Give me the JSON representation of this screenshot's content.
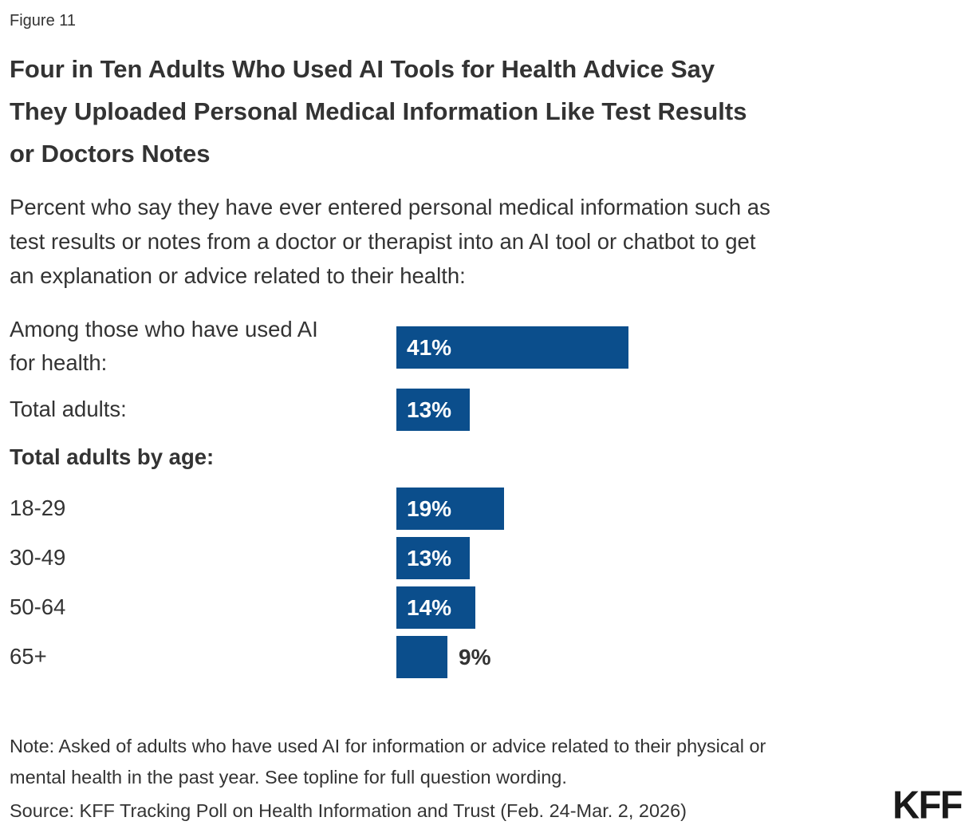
{
  "figure_label": "Figure 11",
  "title_lines": [
    "Four in Ten Adults Who Used AI Tools for Health Advice Say",
    "They Uploaded Personal Medical Information Like Test Results",
    "or Doctors Notes"
  ],
  "subtitle_lines": [
    "Percent who say they have ever entered personal medical information such as",
    "test results or notes from a doctor or therapist into an AI tool or chatbot to get",
    "an explanation or advice related to their health:"
  ],
  "chart_data": {
    "type": "bar",
    "orientation": "horizontal",
    "title": "Four in Ten Adults Who Used AI Tools for Health Advice Say They Uploaded Personal Medical Information Like Test Results or Doctors Notes",
    "subtitle": "Percent who say they have ever entered personal medical information such as test results or notes from a doctor or therapist into an AI tool or chatbot to get an explanation or advice related to their health:",
    "group_header": "Total adults by age:",
    "categories": [
      "Among those who have used AI for health:",
      "Total adults:",
      "18-29",
      "30-49",
      "50-64",
      "65+"
    ],
    "values": [
      41,
      13,
      19,
      13,
      14,
      9
    ],
    "value_labels": [
      "41%",
      "13%",
      "19%",
      "13%",
      "14%",
      "9%"
    ],
    "xlim": [
      0,
      100
    ],
    "grid": false,
    "legend": false,
    "bar_color": "#0b4e8c",
    "value_label_inside_color": "#ffffff",
    "value_label_outside_color": "#333333"
  },
  "note_lines": [
    "Note: Asked of adults who have used AI for information or advice related to their physical or",
    "mental health in the past year. See topline for full question wording."
  ],
  "source": "Source: KFF Tracking Poll on Health Information and Trust (Feb. 24-Mar. 2, 2026)",
  "logo_text": "KFF"
}
